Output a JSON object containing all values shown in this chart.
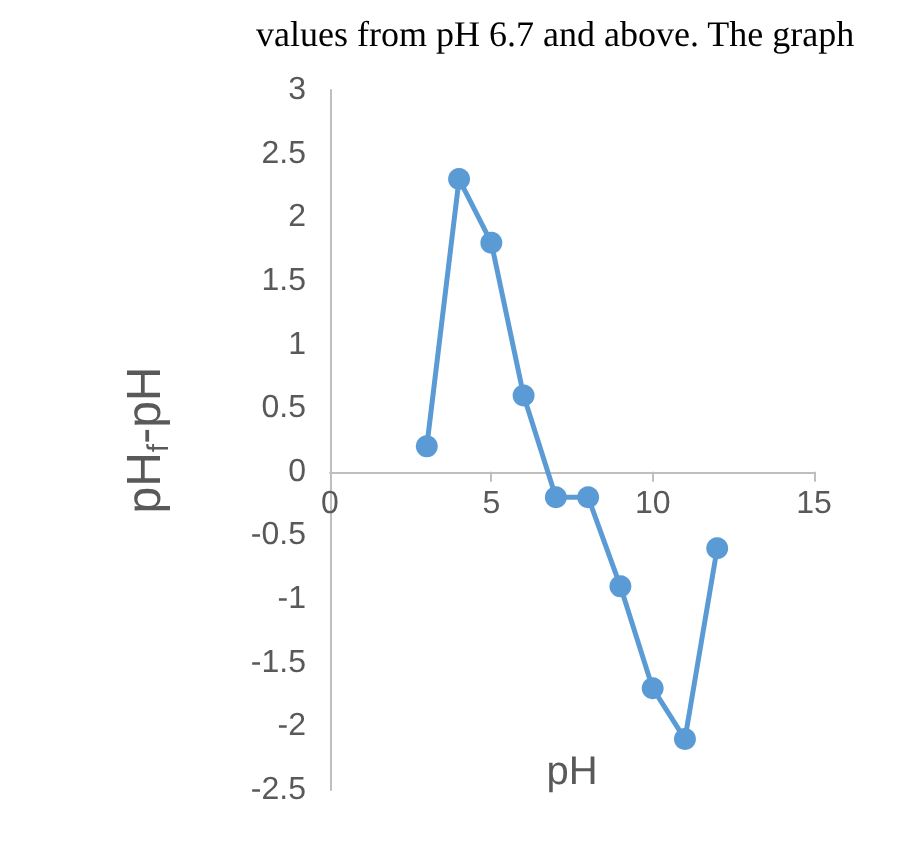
{
  "chart_data": {
    "type": "line",
    "xlabel": "pH",
    "ylabel": "pH$_{f}$-pH",
    "annotations": [
      "values from pH 6.7 and above. The graph"
    ],
    "x": [
      3,
      4,
      5,
      6,
      7,
      8,
      9,
      10,
      11,
      12
    ],
    "series": [
      {
        "color": "#5b9bd5",
        "values": [
          0.2,
          2.3,
          1.8,
          0.6,
          -0.2,
          -0.2,
          -0.9,
          -1.7,
          -2.1,
          -0.6
        ]
      }
    ],
    "xlim": [
      0,
      15
    ],
    "xticks": [
      0,
      5,
      10,
      15
    ],
    "ylim": [
      -2.5,
      3
    ],
    "yticks": [
      -2.5,
      -2,
      -1.5,
      -1,
      -0.5,
      0,
      0.5,
      1,
      1.5,
      2,
      2.5,
      3
    ],
    "grid": false,
    "marker": "circle",
    "line_style": "solid"
  }
}
